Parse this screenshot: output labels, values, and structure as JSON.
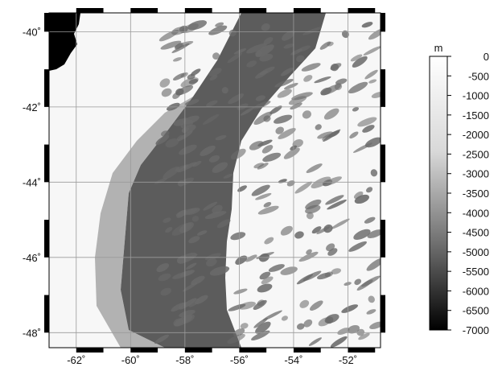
{
  "map": {
    "x_axis": {
      "min": -63.0,
      "max": -50.8,
      "ticks": [
        {
          "value": -62,
          "label": "-62˚"
        },
        {
          "value": -60,
          "label": "-60˚"
        },
        {
          "value": -58,
          "label": "-58˚"
        },
        {
          "value": -56,
          "label": "-56˚"
        },
        {
          "value": -54,
          "label": "-54˚"
        },
        {
          "value": -52,
          "label": "-52˚"
        }
      ]
    },
    "y_axis": {
      "min": -48.4,
      "max": -39.5,
      "ticks": [
        {
          "value": -40,
          "label": "-40˚"
        },
        {
          "value": -42,
          "label": "-42˚"
        },
        {
          "value": -44,
          "label": "-44˚"
        },
        {
          "value": -46,
          "label": "-46˚"
        },
        {
          "value": -48,
          "label": "-48˚"
        }
      ]
    },
    "grid": true,
    "frame_style": "checkered black/white",
    "colors": {
      "land": "#000000",
      "deep": "#5c5c5c",
      "mid": "#7a7a7a",
      "shallow": "#f2f2f2",
      "grid": "#9a9a9a"
    }
  },
  "colorbar": {
    "unit": "m",
    "ticks": [
      "0",
      "-500",
      "-1000",
      "-1500",
      "-2000",
      "-2500",
      "-3000",
      "-3500",
      "-4000",
      "-4500",
      "-5000",
      "-5500",
      "-6000",
      "-6500",
      "-7000"
    ],
    "color_top": "#ffffff",
    "color_bottom": "#000000"
  }
}
